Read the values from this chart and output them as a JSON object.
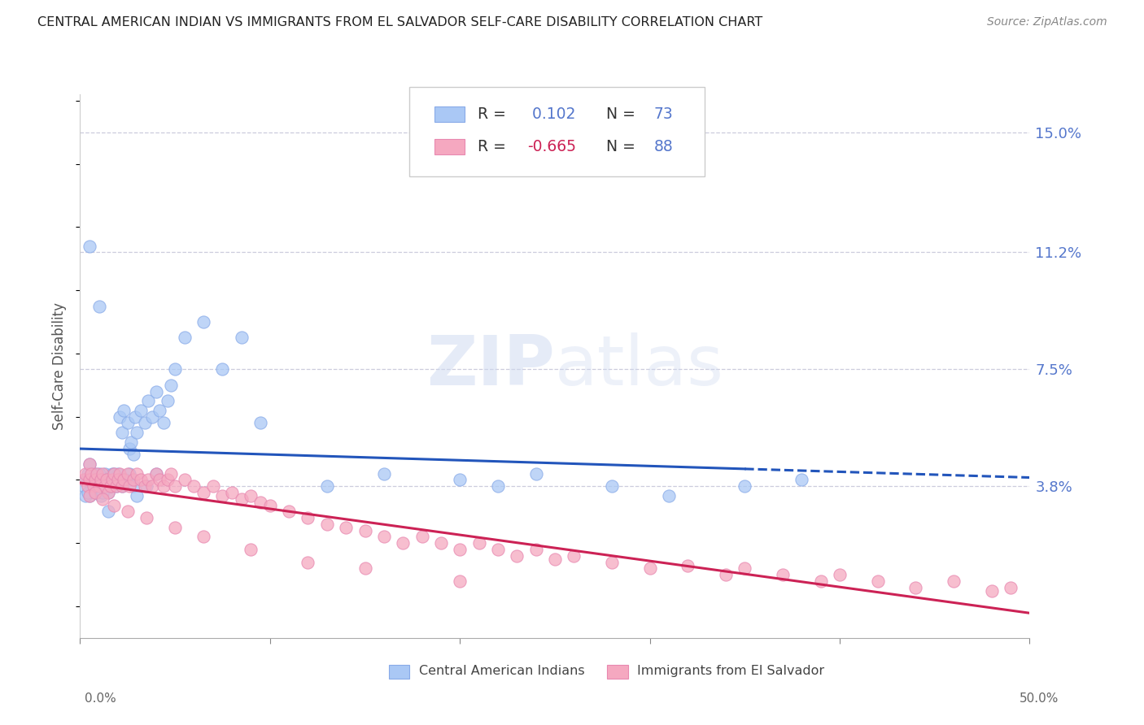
{
  "title": "CENTRAL AMERICAN INDIAN VS IMMIGRANTS FROM EL SALVADOR SELF-CARE DISABILITY CORRELATION CHART",
  "source": "Source: ZipAtlas.com",
  "ylabel": "Self-Care Disability",
  "ytick_values": [
    0.038,
    0.075,
    0.112,
    0.15
  ],
  "ytick_labels": [
    "3.8%",
    "7.5%",
    "11.2%",
    "15.0%"
  ],
  "xmin": 0.0,
  "xmax": 0.5,
  "ymin": -0.01,
  "ymax": 0.162,
  "blue_R": 0.102,
  "blue_N": 73,
  "pink_R": -0.665,
  "pink_N": 88,
  "blue_color": "#aac8f5",
  "pink_color": "#f5a8c0",
  "blue_line_color": "#2255bb",
  "pink_line_color": "#cc2255",
  "legend_label_blue": "Central American Indians",
  "legend_label_pink": "Immigrants from El Salvador",
  "watermark": "ZIPatlas",
  "grid_color": "#ccccdd",
  "title_color": "#222222",
  "source_color": "#888888",
  "right_label_color": "#5577cc",
  "blue_scatter_x": [
    0.002,
    0.003,
    0.004,
    0.005,
    0.005,
    0.006,
    0.007,
    0.008,
    0.008,
    0.009,
    0.01,
    0.011,
    0.012,
    0.013,
    0.014,
    0.015,
    0.016,
    0.017,
    0.018,
    0.019,
    0.02,
    0.021,
    0.022,
    0.023,
    0.025,
    0.026,
    0.027,
    0.028,
    0.029,
    0.03,
    0.032,
    0.034,
    0.036,
    0.038,
    0.04,
    0.042,
    0.044,
    0.046,
    0.048,
    0.05,
    0.003,
    0.004,
    0.006,
    0.008,
    0.01,
    0.012,
    0.014,
    0.016,
    0.018,
    0.022,
    0.024,
    0.026,
    0.028,
    0.03,
    0.035,
    0.04,
    0.055,
    0.065,
    0.075,
    0.085,
    0.095,
    0.13,
    0.16,
    0.2,
    0.22,
    0.24,
    0.28,
    0.31,
    0.35,
    0.38,
    0.005,
    0.01,
    0.015
  ],
  "blue_scatter_y": [
    0.038,
    0.04,
    0.042,
    0.035,
    0.045,
    0.038,
    0.04,
    0.036,
    0.042,
    0.038,
    0.04,
    0.035,
    0.038,
    0.042,
    0.04,
    0.036,
    0.038,
    0.042,
    0.04,
    0.038,
    0.042,
    0.06,
    0.055,
    0.062,
    0.058,
    0.05,
    0.052,
    0.048,
    0.06,
    0.055,
    0.062,
    0.058,
    0.065,
    0.06,
    0.068,
    0.062,
    0.058,
    0.065,
    0.07,
    0.075,
    0.035,
    0.036,
    0.04,
    0.038,
    0.042,
    0.036,
    0.04,
    0.038,
    0.042,
    0.038,
    0.04,
    0.042,
    0.038,
    0.035,
    0.038,
    0.042,
    0.085,
    0.09,
    0.075,
    0.085,
    0.058,
    0.038,
    0.042,
    0.04,
    0.038,
    0.042,
    0.038,
    0.035,
    0.038,
    0.04,
    0.114,
    0.095,
    0.03
  ],
  "pink_scatter_x": [
    0.002,
    0.003,
    0.004,
    0.005,
    0.005,
    0.006,
    0.007,
    0.008,
    0.009,
    0.01,
    0.011,
    0.012,
    0.013,
    0.014,
    0.015,
    0.016,
    0.017,
    0.018,
    0.019,
    0.02,
    0.021,
    0.022,
    0.023,
    0.025,
    0.026,
    0.028,
    0.03,
    0.032,
    0.034,
    0.036,
    0.038,
    0.04,
    0.042,
    0.044,
    0.046,
    0.048,
    0.05,
    0.055,
    0.06,
    0.065,
    0.07,
    0.075,
    0.08,
    0.085,
    0.09,
    0.095,
    0.1,
    0.11,
    0.12,
    0.13,
    0.14,
    0.15,
    0.16,
    0.17,
    0.18,
    0.19,
    0.2,
    0.21,
    0.22,
    0.23,
    0.24,
    0.25,
    0.26,
    0.28,
    0.3,
    0.32,
    0.34,
    0.35,
    0.37,
    0.39,
    0.4,
    0.42,
    0.44,
    0.46,
    0.48,
    0.49,
    0.005,
    0.008,
    0.012,
    0.018,
    0.025,
    0.035,
    0.05,
    0.065,
    0.09,
    0.12,
    0.15,
    0.2
  ],
  "pink_scatter_y": [
    0.04,
    0.042,
    0.038,
    0.045,
    0.04,
    0.042,
    0.038,
    0.04,
    0.042,
    0.038,
    0.04,
    0.042,
    0.038,
    0.04,
    0.036,
    0.038,
    0.04,
    0.042,
    0.038,
    0.04,
    0.042,
    0.038,
    0.04,
    0.042,
    0.038,
    0.04,
    0.042,
    0.04,
    0.038,
    0.04,
    0.038,
    0.042,
    0.04,
    0.038,
    0.04,
    0.042,
    0.038,
    0.04,
    0.038,
    0.036,
    0.038,
    0.035,
    0.036,
    0.034,
    0.035,
    0.033,
    0.032,
    0.03,
    0.028,
    0.026,
    0.025,
    0.024,
    0.022,
    0.02,
    0.022,
    0.02,
    0.018,
    0.02,
    0.018,
    0.016,
    0.018,
    0.015,
    0.016,
    0.014,
    0.012,
    0.013,
    0.01,
    0.012,
    0.01,
    0.008,
    0.01,
    0.008,
    0.006,
    0.008,
    0.005,
    0.006,
    0.035,
    0.036,
    0.034,
    0.032,
    0.03,
    0.028,
    0.025,
    0.022,
    0.018,
    0.014,
    0.012,
    0.008
  ]
}
